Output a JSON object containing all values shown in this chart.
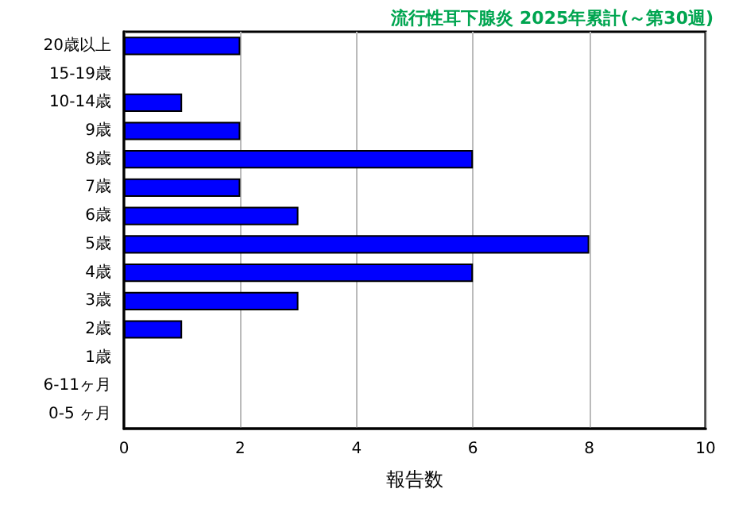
{
  "chart_data": {
    "type": "bar",
    "orientation": "horizontal",
    "title": "流行性耳下腺炎 2025年累計(～第30週)",
    "xlabel": "報告数",
    "categories": [
      "20歳以上",
      "15-19歳",
      "10-14歳",
      "9歳",
      "8歳",
      "7歳",
      "6歳",
      "5歳",
      "4歳",
      "3歳",
      "2歳",
      "1歳",
      "6-11ヶ月",
      "0-5 ヶ月"
    ],
    "values": [
      2,
      0,
      1,
      2,
      6,
      2,
      3,
      8,
      6,
      3,
      1,
      0,
      0,
      0
    ],
    "color": "#0000ff",
    "xlim": [
      0,
      10
    ],
    "xticks": [
      0,
      2,
      4,
      6,
      8,
      10
    ],
    "grid": "x"
  }
}
